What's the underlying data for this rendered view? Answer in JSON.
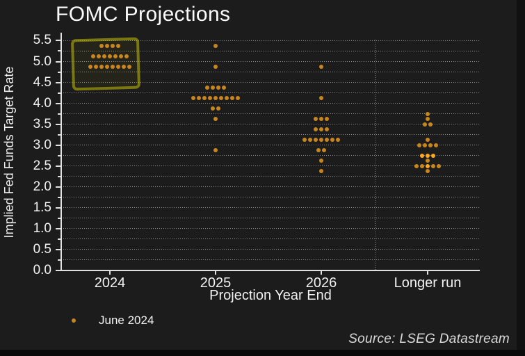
{
  "title": "FOMC Projections",
  "axes": {
    "ylabel": "Implied Fed Funds Target Rate",
    "xlabel": "Projection Year End"
  },
  "legend": {
    "label": "June 2024",
    "marker_color": "#c8861d"
  },
  "source": "Source: LSEG Datastream",
  "colors": {
    "background": "#1c1c1c",
    "dot": "#c8861d",
    "dot_bright": "#ffa71e",
    "grid": "#909090",
    "axis": "#e0e0e0",
    "text": "#f2f2f2",
    "highlight_box": "#c1bc0a",
    "source_text": "#d9d9d9"
  },
  "chart_data": {
    "type": "scatter",
    "subtype": "fomc-dot-plot",
    "title": "FOMC Projections",
    "xlabel": "Projection Year End",
    "ylabel": "Implied Fed Funds Target Rate",
    "ylim": [
      0,
      5.5
    ],
    "ytick_step": 0.5,
    "yminor_step": 0.25,
    "ytick_labels": [
      "0.0",
      "0.5",
      "1.0",
      "1.5",
      "2.0",
      "2.5",
      "3.0",
      "3.5",
      "4.0",
      "4.5",
      "5.0",
      "5.5"
    ],
    "grid": "dotted horizontal lines every 0.25",
    "legend_position": "bottom-left",
    "categories": [
      "2024",
      "2025",
      "2026",
      "Longer run"
    ],
    "separator_after_category": "2026",
    "series": [
      {
        "name": "June 2024",
        "color": "#c8861d",
        "dots": [
          {
            "category": "2024",
            "rows": [
              {
                "value": 5.375,
                "count": 4
              },
              {
                "value": 5.125,
                "count": 7
              },
              {
                "value": 4.875,
                "count": 8
              }
            ]
          },
          {
            "category": "2025",
            "rows": [
              {
                "value": 5.375,
                "count": 1
              },
              {
                "value": 4.875,
                "count": 1
              },
              {
                "value": 4.375,
                "count": 4
              },
              {
                "value": 4.125,
                "count": 9
              },
              {
                "value": 3.875,
                "count": 2
              },
              {
                "value": 3.625,
                "count": 1
              },
              {
                "value": 2.875,
                "count": 1
              }
            ]
          },
          {
            "category": "2026",
            "rows": [
              {
                "value": 4.875,
                "count": 1
              },
              {
                "value": 4.125,
                "count": 1
              },
              {
                "value": 3.625,
                "count": 3
              },
              {
                "value": 3.375,
                "count": 3
              },
              {
                "value": 3.125,
                "count": 7
              },
              {
                "value": 2.875,
                "count": 2
              },
              {
                "value": 2.625,
                "count": 1
              },
              {
                "value": 2.375,
                "count": 1
              }
            ]
          },
          {
            "category": "Longer run",
            "rows": [
              {
                "value": 3.75,
                "count": 1
              },
              {
                "value": 3.625,
                "count": 1
              },
              {
                "value": 3.5,
                "count": 2
              },
              {
                "value": 3.125,
                "count": 1
              },
              {
                "value": 3.0,
                "count": 4
              },
              {
                "value": 2.75,
                "count": 3,
                "bright": true
              },
              {
                "value": 2.625,
                "count": 1
              },
              {
                "value": 2.5,
                "count": 5,
                "bright_indices": [
                  2
                ]
              },
              {
                "value": 2.375,
                "count": 1
              }
            ]
          }
        ]
      }
    ],
    "annotations": [
      {
        "type": "rect",
        "label": "highlight-2024-dots",
        "category": "2024",
        "value_range": [
          4.45,
          5.55
        ],
        "color": "#c1bc0a"
      }
    ]
  }
}
